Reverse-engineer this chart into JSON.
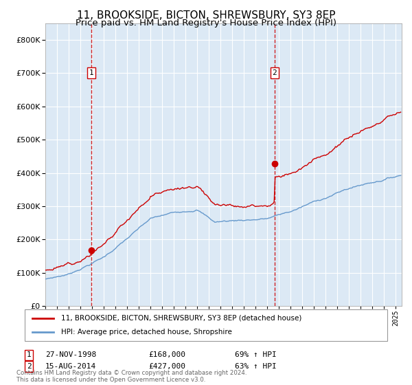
{
  "title": "11, BROOKSIDE, BICTON, SHREWSBURY, SY3 8EP",
  "subtitle": "Price paid vs. HM Land Registry's House Price Index (HPI)",
  "title_fontsize": 11,
  "subtitle_fontsize": 9.5,
  "background_color": "#ffffff",
  "plot_bg_color": "#dce9f5",
  "grid_color": "#ffffff",
  "red_line_color": "#cc0000",
  "blue_line_color": "#6699cc",
  "sale1_x": 1998.92,
  "sale1_y": 168000,
  "sale1_label": "1",
  "sale1_date": "27-NOV-1998",
  "sale1_price": "£168,000",
  "sale1_hpi": "69% ↑ HPI",
  "sale2_x": 2014.62,
  "sale2_y": 427000,
  "sale2_label": "2",
  "sale2_date": "15-AUG-2014",
  "sale2_price": "£427,000",
  "sale2_hpi": "63% ↑ HPI",
  "ylim": [
    0,
    850000
  ],
  "xlim": [
    1995.0,
    2025.5
  ],
  "legend_label_red": "11, BROOKSIDE, BICTON, SHREWSBURY, SY3 8EP (detached house)",
  "legend_label_blue": "HPI: Average price, detached house, Shropshire",
  "footer": "Contains HM Land Registry data © Crown copyright and database right 2024.\nThis data is licensed under the Open Government Licence v3.0."
}
